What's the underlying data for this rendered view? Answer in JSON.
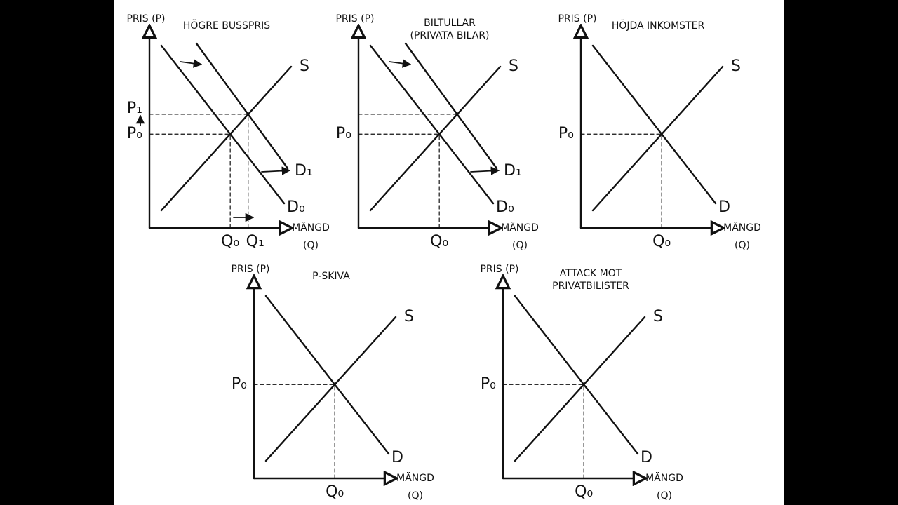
{
  "panels": [
    {
      "title": [
        "HÖGRE BUSSPRIS"
      ],
      "y_axis": "PRIS (P)",
      "x_axis": [
        "MÄNGD",
        "(Q)"
      ],
      "supply": "S",
      "demand": [
        "D₀",
        "D₁"
      ],
      "price": [
        "P₀",
        "P₁"
      ],
      "quantity": [
        "Q₀",
        "Q₁"
      ]
    },
    {
      "title": [
        "BILTULLAR",
        "(PRIVATA BILAR)"
      ],
      "y_axis": "PRIS (P)",
      "x_axis": [
        "MÄNGD",
        "(Q)"
      ],
      "supply": "S",
      "demand": [
        "D₀",
        "D₁"
      ],
      "price": [
        "P₀"
      ],
      "quantity": [
        "Q₀"
      ]
    },
    {
      "title": [
        "HÖJDA INKOMSTER"
      ],
      "y_axis": "PRIS (P)",
      "x_axis": [
        "MÄNGD",
        "(Q)"
      ],
      "supply": "S",
      "demand": [
        "D"
      ],
      "price": [
        "P₀"
      ],
      "quantity": [
        "Q₀"
      ]
    },
    {
      "title": [
        "P-SKIVA"
      ],
      "y_axis": "PRIS (P)",
      "x_axis": [
        "MÄNGD",
        "(Q)"
      ],
      "supply": "S",
      "demand": [
        "D"
      ],
      "price": [
        "P₀"
      ],
      "quantity": [
        "Q₀"
      ]
    },
    {
      "title": [
        "ATTACK MOT",
        "PRIVATBILISTER"
      ],
      "y_axis": "PRIS (P)",
      "x_axis": [
        "MÄNGD",
        "(Q)"
      ],
      "supply": "S",
      "demand": [
        "D"
      ],
      "price": [
        "P₀"
      ],
      "quantity": [
        "Q₀"
      ]
    }
  ]
}
